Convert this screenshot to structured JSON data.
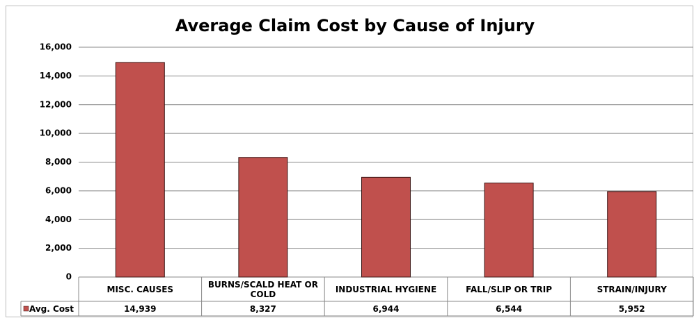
{
  "chart_data": {
    "type": "bar",
    "title": "Average Claim Cost by Cause of Injury",
    "categories": [
      "MISC. CAUSES",
      "BURNS/SCALD HEAT OR COLD",
      "INDUSTRIAL HYGIENE",
      "FALL/SLIP OR TRIP",
      "STRAIN/INJURY"
    ],
    "series": [
      {
        "name": "Avg. Cost",
        "color": "#c0504d",
        "values": [
          14939,
          8327,
          6944,
          6544,
          5952
        ],
        "value_labels": [
          "14,939",
          "8,327",
          "6,944",
          "6,544",
          "5,952"
        ]
      }
    ],
    "ylim": [
      0,
      16000
    ],
    "yticks": [
      0,
      {
        "value": 2000,
        "label": "2,000"
      },
      {
        "value": 4000,
        "label": "4,000"
      },
      {
        "value": 6000,
        "label": "6,000"
      },
      {
        "value": 8000,
        "label": "8,000"
      },
      {
        "value": 10000,
        "label": "10,000"
      },
      {
        "value": 12000,
        "label": "12,000"
      },
      {
        "value": 14000,
        "label": "14,000"
      },
      {
        "value": 16000,
        "label": "16,000"
      }
    ],
    "grid": true,
    "data_table": true
  }
}
